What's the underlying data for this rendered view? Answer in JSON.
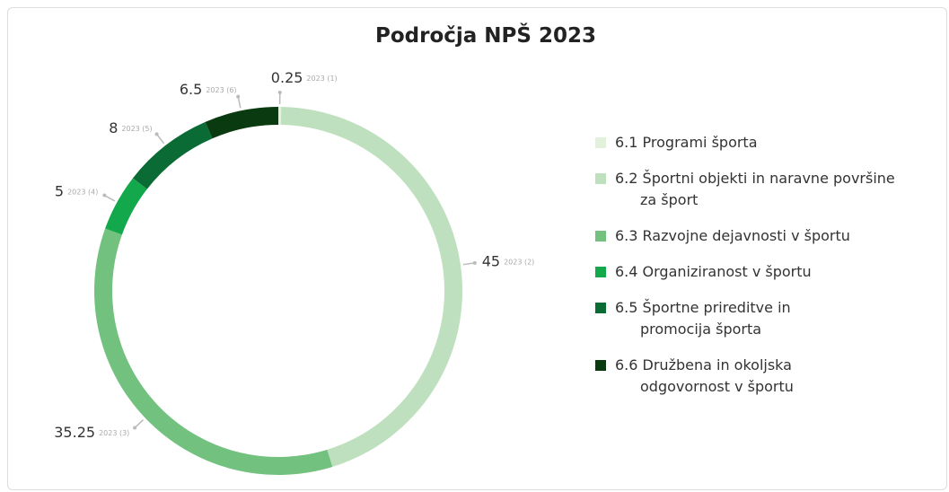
{
  "chart_data": {
    "type": "donut",
    "title": "Področja NPŠ 2023",
    "categories": [
      "6.1 Programi športa",
      "6.2 Športni objekti in naravne površine za šport",
      "6.3 Razvojne dejavnosti v športu",
      "6.4 Organiziranost v športu",
      "6.5 Športne prireditve in promocija športa",
      "6.6 Družbena in okoljska odgovornost v športu"
    ],
    "values": [
      0.25,
      45,
      35.25,
      5,
      8,
      6.5
    ],
    "point_labels": [
      "2023 (1)",
      "2023 (2)",
      "2023 (3)",
      "2023 (4)",
      "2023 (5)",
      "2023 (6)"
    ],
    "colors": [
      "#e2f1dc",
      "#bfe0bf",
      "#72c17f",
      "#13a84b",
      "#0a6b34",
      "#0a3a10"
    ],
    "legend": "right"
  }
}
